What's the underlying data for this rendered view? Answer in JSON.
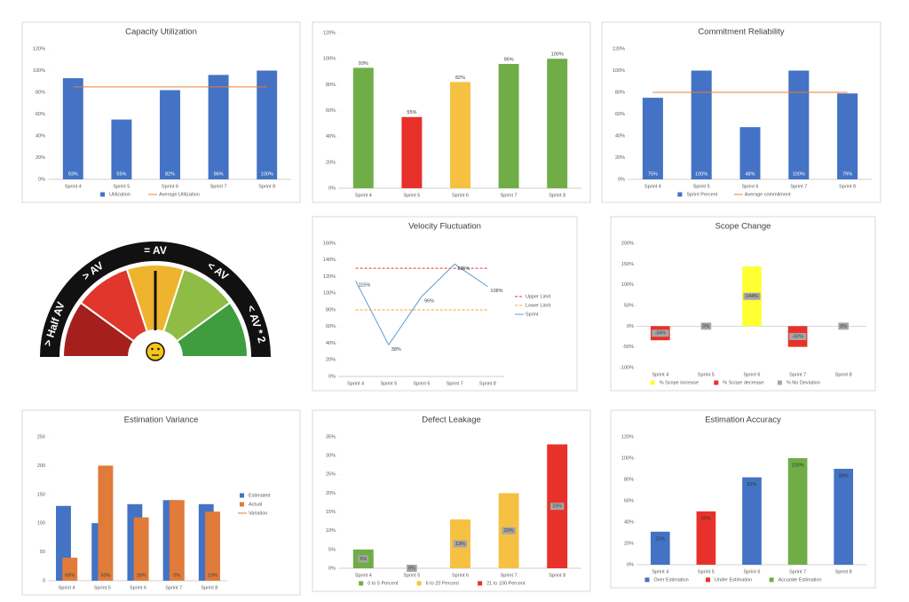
{
  "gauge": {
    "labels": [
      "> Half AV",
      "> AV",
      "= AV",
      "< AV",
      "< AV * 2"
    ]
  },
  "chart_data": [
    {
      "type": "bar",
      "title": "Capacity Utilization",
      "categories": [
        "Sprint 4",
        "Sprint 5",
        "Sprint 6",
        "Sprint 7",
        "Sprint 8"
      ],
      "series": [
        {
          "name": "Utilization",
          "type": "bar",
          "color": "#4472c4",
          "values": [
            93,
            55,
            82,
            96,
            100
          ],
          "value_labels": [
            "93%",
            "55%",
            "82%",
            "96%",
            "100%"
          ]
        },
        {
          "name": "Average Utilization",
          "type": "line",
          "color": "#ed7d31",
          "values": [
            85,
            85,
            85,
            85,
            85
          ]
        }
      ],
      "ylim": [
        0,
        120
      ],
      "yticks": [
        {
          "value": 0,
          "label": "0%"
        },
        {
          "value": 20,
          "label": "20%"
        },
        {
          "value": 40,
          "label": "40%"
        },
        {
          "value": 60,
          "label": "60%"
        },
        {
          "value": 80,
          "label": "80%"
        },
        {
          "value": 100,
          "label": "100%"
        },
        {
          "value": 120,
          "label": "120%"
        }
      ],
      "legend": "bottom",
      "label_position": "base",
      "label_color": "#ffffff"
    },
    {
      "type": "bar",
      "categories": [
        "Sprint 4",
        "Sprint 5",
        "Sprint 6",
        "Sprint 7",
        "Sprint 8"
      ],
      "series": [
        {
          "type": "bar",
          "colors": [
            "#70ad47",
            "#e8312a",
            "#f6c142",
            "#70ad47",
            "#70ad47"
          ],
          "values": [
            93,
            55,
            82,
            96,
            100
          ],
          "value_labels": [
            "93%",
            "55%",
            "82%",
            "96%",
            "100%"
          ]
        }
      ],
      "ylim": [
        0,
        120
      ],
      "yticks": [
        {
          "value": 0,
          "label": "0%"
        },
        {
          "value": 20,
          "label": "20%"
        },
        {
          "value": 40,
          "label": "40%"
        },
        {
          "value": 60,
          "label": "60%"
        },
        {
          "value": 80,
          "label": "80%"
        },
        {
          "value": 100,
          "label": "100%"
        },
        {
          "value": 120,
          "label": "120%"
        }
      ],
      "label_position": "top",
      "label_color": "#404040"
    },
    {
      "type": "bar",
      "title": "Commitment Reliability",
      "categories": [
        "Sprint 4",
        "Sprint 5",
        "Sprint 6",
        "Sprint 7",
        "Sprint 8"
      ],
      "series": [
        {
          "name": "Sprint Percent",
          "type": "bar",
          "color": "#4472c4",
          "values": [
            75,
            100,
            48,
            100,
            79
          ],
          "value_labels": [
            "75%",
            "100%",
            "48%",
            "100%",
            "79%"
          ]
        },
        {
          "name": "Average commitment",
          "type": "line",
          "color": "#ed7d31",
          "values": [
            80,
            80,
            80,
            80,
            80
          ]
        }
      ],
      "ylim": [
        0,
        120
      ],
      "yticks": [
        {
          "value": 0,
          "label": "0%"
        },
        {
          "value": 20,
          "label": "20%"
        },
        {
          "value": 40,
          "label": "40%"
        },
        {
          "value": 60,
          "label": "60%"
        },
        {
          "value": 80,
          "label": "80%"
        },
        {
          "value": 100,
          "label": "100%"
        },
        {
          "value": 120,
          "label": "120%"
        }
      ],
      "legend": "bottom",
      "label_position": "base",
      "label_color": "#ffffff"
    },
    {
      "type": "line",
      "title": "Velocity Fluctuation",
      "categories": [
        "Sprint 4",
        "Sprint 5",
        "Sprint 6",
        "Sprint 7",
        "Sprint 8"
      ],
      "series": [
        {
          "name": "Upper Limit",
          "type": "line",
          "dash": true,
          "color": "#e8312a",
          "values": [
            130,
            130,
            130,
            130,
            130
          ]
        },
        {
          "name": "Lower Limit",
          "type": "line",
          "dash": true,
          "color": "#f0a030",
          "values": [
            80,
            80,
            80,
            80,
            80
          ]
        },
        {
          "name": "Sprint",
          "type": "line",
          "color": "#5b9bd5",
          "values": [
            115,
            38,
            96,
            135,
            108
          ],
          "value_labels": [
            "115%",
            "38%",
            "96%",
            "135%",
            "108%"
          ]
        }
      ],
      "ylim": [
        0,
        160
      ],
      "yticks": [
        {
          "value": 0,
          "label": "0%"
        },
        {
          "value": 20,
          "label": "20%"
        },
        {
          "value": 40,
          "label": "40%"
        },
        {
          "value": 60,
          "label": "60%"
        },
        {
          "value": 80,
          "label": "80%"
        },
        {
          "value": 100,
          "label": "100%"
        },
        {
          "value": 120,
          "label": "120%"
        },
        {
          "value": 140,
          "label": "140%"
        },
        {
          "value": 160,
          "label": "160%"
        }
      ],
      "legend": "right",
      "label_position": "point",
      "label_color": "#404040"
    },
    {
      "type": "bar",
      "title": "Scope Change",
      "categories": [
        "Sprint 4",
        "Sprint 5",
        "Sprint 6",
        "Sprint 7",
        "Sprint 8"
      ],
      "series": [
        {
          "name": "% Scope increase",
          "type": "bar",
          "color": "#ffff33",
          "values": [
            null,
            null,
            144,
            null,
            null
          ],
          "value_labels": [
            null,
            null,
            "144%",
            null,
            null
          ]
        },
        {
          "name": "% Scope decrease",
          "type": "bar",
          "color": "#e8312a",
          "values": [
            -34,
            null,
            null,
            -50,
            null
          ],
          "value_labels": [
            "-34%",
            null,
            null,
            "-50%",
            null
          ]
        },
        {
          "name": "% No Deviation",
          "type": "bar",
          "color": "#a6a6a6",
          "values": [
            null,
            0,
            null,
            null,
            0
          ],
          "value_labels": [
            null,
            "0%",
            null,
            null,
            "0%"
          ]
        }
      ],
      "ylim": [
        -100,
        200
      ],
      "yticks": [
        {
          "value": -100,
          "label": "-100%"
        },
        {
          "value": -50,
          "label": "-50%"
        },
        {
          "value": 0,
          "label": "0%"
        },
        {
          "value": 50,
          "label": "50%"
        },
        {
          "value": 100,
          "label": "100%"
        },
        {
          "value": 150,
          "label": "150%"
        },
        {
          "value": 200,
          "label": "200%"
        }
      ],
      "legend": "bottom",
      "label_position": "center",
      "label_box": true,
      "label_color": "#404040"
    },
    {
      "type": "bar",
      "title": "Estimation Variance",
      "categories": [
        "Sprint 4",
        "Sprint 5",
        "Sprint 6",
        "Sprint 7",
        "Sprint 8"
      ],
      "series": [
        {
          "name": "Estimated",
          "type": "bar",
          "color": "#4472c4",
          "values": [
            130,
            100,
            133,
            140,
            133
          ]
        },
        {
          "name": "Actual",
          "type": "bar",
          "color": "#e07b39",
          "values": [
            40,
            200,
            110,
            140,
            120
          ]
        },
        {
          "name": "Variation",
          "type": "labels",
          "color": "#e07b39",
          "values": [
            69,
            50,
            18,
            0,
            10
          ],
          "value_labels": [
            "69%",
            "50%",
            "18%",
            "0%",
            "10%"
          ]
        }
      ],
      "ylim": [
        0,
        250
      ],
      "yticks": [
        0,
        50,
        100,
        150,
        200,
        250
      ],
      "legend": "right",
      "label_color": "#404040"
    },
    {
      "type": "bar",
      "title": "Defect Leakage",
      "categories": [
        "Sprint 4",
        "Sprint 5",
        "Sprint 6",
        "Sprint 7",
        "Sprint 8"
      ],
      "series": [
        {
          "name": "0 to 5 Percent",
          "type": "bar",
          "color": "#70ad47",
          "values": [
            5,
            0,
            null,
            null,
            null
          ],
          "value_labels": [
            "5%",
            "0%",
            null,
            null,
            null
          ]
        },
        {
          "name": "6 to 20 Percent",
          "type": "bar",
          "color": "#f6c142",
          "values": [
            null,
            null,
            13,
            20,
            null
          ],
          "value_labels": [
            null,
            null,
            "13%",
            "20%",
            null
          ]
        },
        {
          "name": "21 to 100 Percent",
          "type": "bar",
          "color": "#e8312a",
          "values": [
            null,
            null,
            null,
            null,
            33
          ],
          "value_labels": [
            null,
            null,
            null,
            null,
            "33%"
          ]
        }
      ],
      "ylim": [
        0,
        35
      ],
      "yticks": [
        {
          "value": 0,
          "label": "0%"
        },
        {
          "value": 5,
          "label": "5%"
        },
        {
          "value": 10,
          "label": "10%"
        },
        {
          "value": 15,
          "label": "15%"
        },
        {
          "value": 20,
          "label": "20%"
        },
        {
          "value": 25,
          "label": "25%"
        },
        {
          "value": 30,
          "label": "30%"
        },
        {
          "value": 35,
          "label": "35%"
        }
      ],
      "legend": "bottom",
      "label_position": "center",
      "label_box": true,
      "label_color": "#404040"
    },
    {
      "type": "bar",
      "title": "Estimation Accuracy",
      "categories": [
        "Sprint 4",
        "Sprint 5",
        "Sprint 6",
        "Sprint 7",
        "Sprint 8"
      ],
      "series": [
        {
          "name": "Over Estimation",
          "type": "bar",
          "color": "#4472c4",
          "values": [
            31,
            null,
            82,
            null,
            90
          ],
          "value_labels": [
            "31%",
            null,
            "82%",
            null,
            "90%"
          ]
        },
        {
          "name": "Under Estimation",
          "type": "bar",
          "color": "#e8312a",
          "values": [
            null,
            50,
            null,
            null,
            null
          ],
          "value_labels": [
            null,
            "50%",
            null,
            null,
            null
          ]
        },
        {
          "name": "Accurate Estimation",
          "type": "bar",
          "color": "#70ad47",
          "values": [
            null,
            null,
            null,
            100,
            null
          ],
          "value_labels": [
            null,
            null,
            null,
            "100%",
            null
          ]
        }
      ],
      "ylim": [
        0,
        120
      ],
      "yticks": [
        {
          "value": 0,
          "label": "0%"
        },
        {
          "value": 20,
          "label": "20%"
        },
        {
          "value": 40,
          "label": "40%"
        },
        {
          "value": 60,
          "label": "60%"
        },
        {
          "value": 80,
          "label": "80%"
        },
        {
          "value": 100,
          "label": "100%"
        },
        {
          "value": 120,
          "label": "120%"
        }
      ],
      "legend": "bottom",
      "label_position": "end-inside",
      "label_color": "#333333"
    }
  ]
}
